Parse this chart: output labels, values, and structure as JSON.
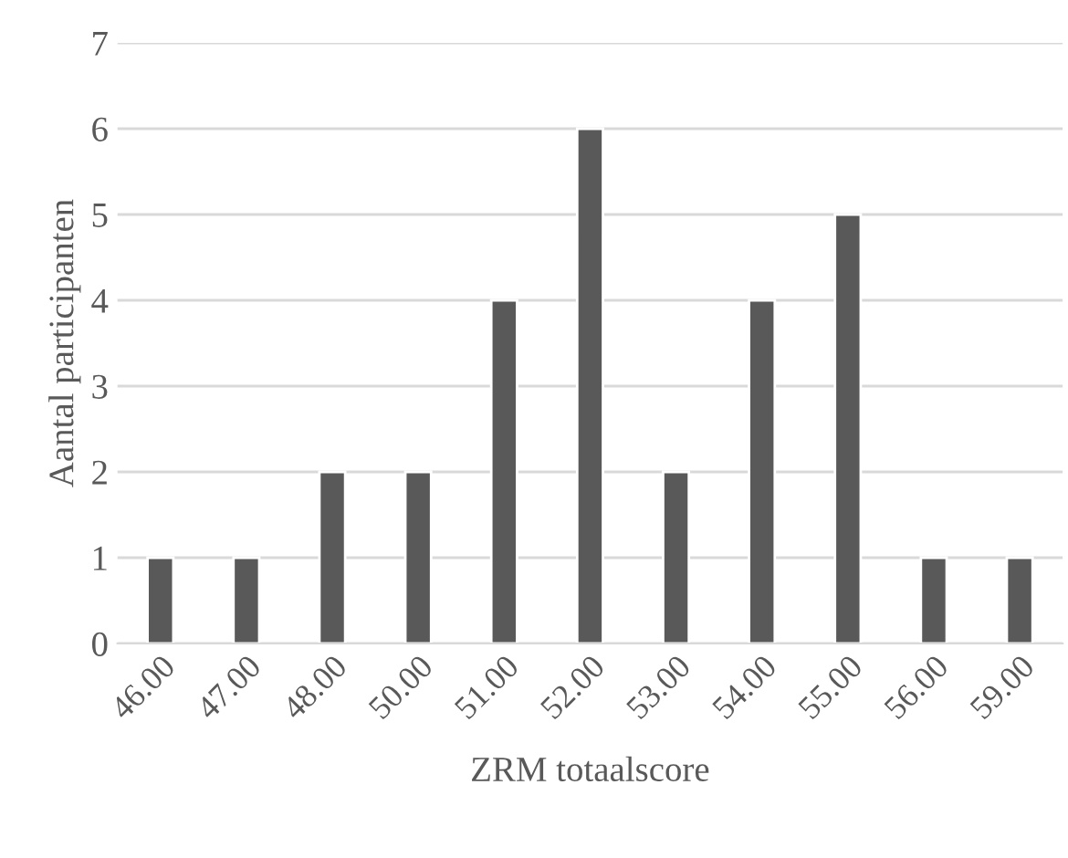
{
  "chart_data": {
    "type": "bar",
    "xlabel": "ZRM totaalscore",
    "ylabel": "Aantal participanten",
    "categories": [
      "46.00",
      "47.00",
      "48.00",
      "50.00",
      "51.00",
      "52.00",
      "53.00",
      "54.00",
      "55.00",
      "56.00",
      "59.00"
    ],
    "values": [
      1,
      1,
      2,
      2,
      4,
      6,
      2,
      4,
      5,
      1,
      1
    ],
    "color": "#595959",
    "ylim": [
      0,
      7
    ],
    "yticks": [
      0,
      1,
      2,
      3,
      4,
      5,
      6,
      7
    ],
    "grid": "y"
  }
}
